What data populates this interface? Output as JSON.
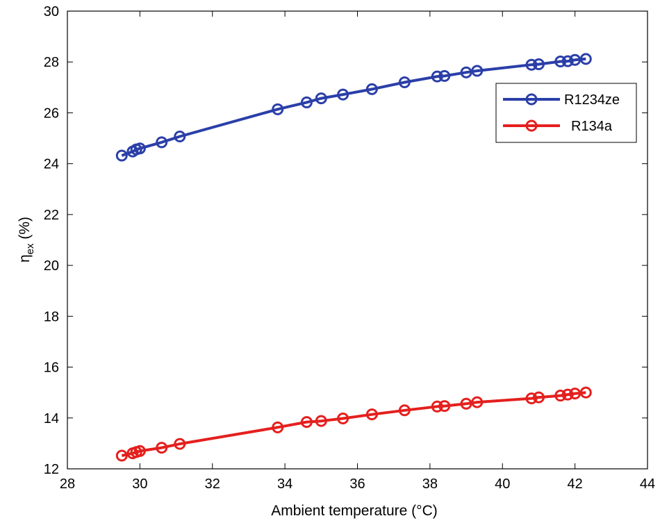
{
  "chart_data": {
    "type": "line",
    "title": "",
    "xlabel": "Ambient temperature (°C)",
    "ylabel_main": "η",
    "ylabel_sub": "ex",
    "ylabel_tail": " (%)",
    "xlim": [
      28,
      44
    ],
    "ylim": [
      12,
      30
    ],
    "xticks": [
      28,
      30,
      32,
      34,
      36,
      38,
      40,
      42,
      44
    ],
    "yticks": [
      12,
      14,
      16,
      18,
      20,
      22,
      24,
      26,
      28,
      30
    ],
    "grid": false,
    "legend_position": "upper-right",
    "x": [
      29.5,
      29.8,
      29.9,
      30.0,
      30.6,
      31.1,
      33.8,
      34.6,
      35.0,
      35.6,
      36.4,
      37.3,
      38.2,
      38.4,
      39.0,
      39.3,
      40.8,
      41.0,
      41.6,
      41.8,
      42.0,
      42.3
    ],
    "series": [
      {
        "name": "R1234ze",
        "color": "#2b3fa8",
        "values": [
          24.32,
          24.48,
          24.56,
          24.6,
          24.84,
          25.07,
          26.14,
          26.41,
          26.57,
          26.72,
          26.93,
          27.2,
          27.43,
          27.45,
          27.59,
          27.65,
          27.89,
          27.91,
          28.02,
          28.03,
          28.08,
          28.12
        ]
      },
      {
        "name": "R134a",
        "color": "#e4201e",
        "values": [
          12.52,
          12.61,
          12.66,
          12.7,
          12.83,
          12.98,
          13.63,
          13.84,
          13.88,
          13.98,
          14.14,
          14.3,
          14.45,
          14.47,
          14.56,
          14.62,
          14.77,
          14.81,
          14.88,
          14.92,
          14.96,
          15.0
        ]
      }
    ]
  }
}
